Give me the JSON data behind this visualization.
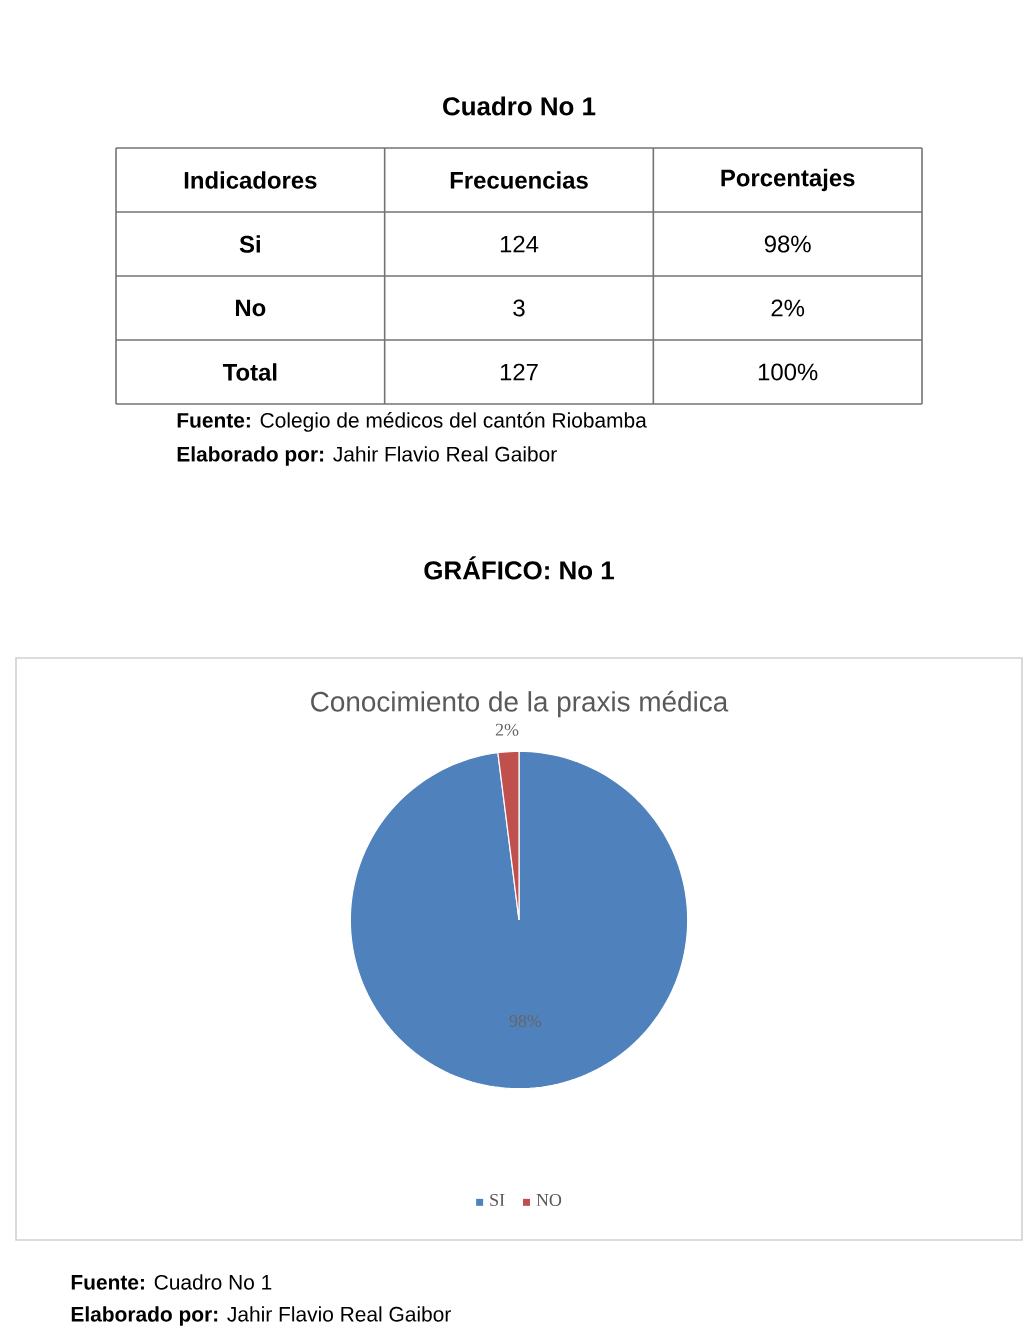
{
  "chart_data": [
    {
      "type": "other",
      "title": "Cuadro No 1",
      "xlabel": "Indicadores",
      "categories": [
        "Si",
        "No",
        "Total"
      ],
      "series": [
        {
          "name": "Frecuencias",
          "values": [
            124,
            3,
            127
          ]
        },
        {
          "name": "Porcentajes",
          "values": [
            98,
            2,
            100
          ],
          "value_labels": [
            "98%",
            "2%",
            "100%"
          ]
        }
      ],
      "data_labels": true,
      "annotations": [
        "**Fuente:** Colegio de médicos del cantón Riobamba",
        "**Elaborado por:** Jahir Flavio Real Gaibor"
      ]
    },
    {
      "type": "pie",
      "title": "GRÁFICO: No 1",
      "subtitle": "Conocimiento de la praxis médica",
      "categories": [
        "SI",
        "NO"
      ],
      "values": [
        98,
        2
      ],
      "colors": [
        "#4f81bd",
        "#c0504d"
      ],
      "value_labels": [
        "98%",
        "2%"
      ],
      "legend": "bottom",
      "annotations": [
        "**Fuente:** Cuadro No 1",
        "**Elaborado por:** Jahir Flavio Real Gaibor"
      ]
    }
  ]
}
